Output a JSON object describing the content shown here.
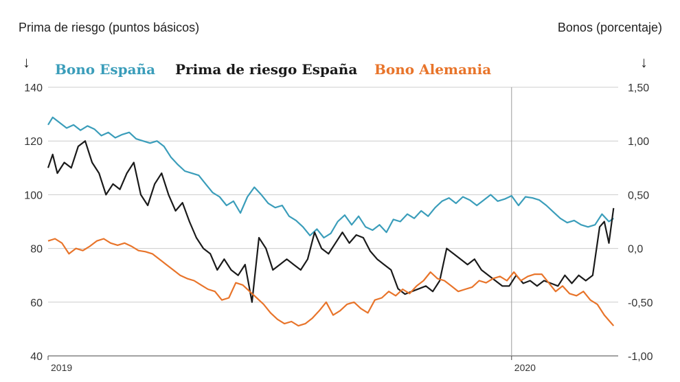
{
  "chart_data": {
    "type": "line",
    "left_axis_title": "Prima de riesgo (puntos básicos)",
    "right_axis_title": "Bonos (porcentaje)",
    "left_ylim": [
      40,
      140
    ],
    "right_ylim": [
      -1.0,
      1.5
    ],
    "left_ticks": [
      "140",
      "120",
      "100",
      "80",
      "60",
      "40"
    ],
    "right_ticks": [
      "1,50",
      "1,00",
      "0,50",
      "0,0",
      "-0,50",
      "-1,00"
    ],
    "x_ticks": [
      {
        "label": "2019",
        "x": 2019.0
      },
      {
        "label": "2020",
        "x": 2020.0
      }
    ],
    "xlim": [
      2019.0,
      2020.23
    ],
    "grid": true,
    "vertical_marker_x": 2020.0,
    "legend_placement": "top",
    "colors": {
      "bono_espana": "#3a9dba",
      "prima": "#1a1a1a",
      "bono_alemania": "#e8742a"
    },
    "series": [
      {
        "name": "Bono España",
        "axis": "right",
        "x": [
          2019.0,
          2019.01,
          2019.025,
          2019.04,
          2019.055,
          2019.07,
          2019.085,
          2019.1,
          2019.115,
          2019.13,
          2019.145,
          2019.16,
          2019.175,
          2019.19,
          2019.205,
          2019.22,
          2019.235,
          2019.25,
          2019.265,
          2019.28,
          2019.295,
          2019.31,
          2019.325,
          2019.34,
          2019.355,
          2019.37,
          2019.385,
          2019.4,
          2019.415,
          2019.43,
          2019.445,
          2019.46,
          2019.475,
          2019.49,
          2019.505,
          2019.52,
          2019.535,
          2019.55,
          2019.565,
          2019.58,
          2019.595,
          2019.61,
          2019.625,
          2019.64,
          2019.655,
          2019.67,
          2019.685,
          2019.7,
          2019.715,
          2019.73,
          2019.745,
          2019.76,
          2019.775,
          2019.79,
          2019.805,
          2019.82,
          2019.835,
          2019.85,
          2019.865,
          2019.88,
          2019.895,
          2019.91,
          2019.925,
          2019.94,
          2019.955,
          2019.97,
          2019.985,
          2020.0,
          2020.015,
          2020.03,
          2020.045,
          2020.06,
          2020.075,
          2020.09,
          2020.105,
          2020.12,
          2020.135,
          2020.15,
          2020.165,
          2020.18,
          2020.195,
          2020.21,
          2020.22
        ],
        "values": [
          1.15,
          1.22,
          1.17,
          1.12,
          1.15,
          1.1,
          1.14,
          1.11,
          1.05,
          1.08,
          1.03,
          1.06,
          1.08,
          1.02,
          1.0,
          0.98,
          1.0,
          0.95,
          0.85,
          0.78,
          0.72,
          0.7,
          0.68,
          0.6,
          0.52,
          0.48,
          0.4,
          0.44,
          0.33,
          0.48,
          0.57,
          0.5,
          0.42,
          0.38,
          0.4,
          0.3,
          0.26,
          0.2,
          0.12,
          0.18,
          0.1,
          0.14,
          0.25,
          0.31,
          0.22,
          0.3,
          0.2,
          0.17,
          0.22,
          0.15,
          0.27,
          0.25,
          0.32,
          0.28,
          0.35,
          0.3,
          0.38,
          0.44,
          0.47,
          0.42,
          0.48,
          0.45,
          0.4,
          0.45,
          0.5,
          0.44,
          0.46,
          0.49,
          0.4,
          0.48,
          0.47,
          0.45,
          0.4,
          0.34,
          0.28,
          0.24,
          0.26,
          0.22,
          0.2,
          0.22,
          0.32,
          0.25,
          0.28
        ]
      },
      {
        "name": "Prima de riesgo España",
        "axis": "left",
        "x": [
          2019.0,
          2019.01,
          2019.02,
          2019.035,
          2019.05,
          2019.065,
          2019.08,
          2019.095,
          2019.11,
          2019.125,
          2019.14,
          2019.155,
          2019.17,
          2019.185,
          2019.2,
          2019.215,
          2019.23,
          2019.245,
          2019.26,
          2019.275,
          2019.29,
          2019.305,
          2019.32,
          2019.335,
          2019.35,
          2019.365,
          2019.38,
          2019.395,
          2019.41,
          2019.425,
          2019.44,
          2019.455,
          2019.47,
          2019.485,
          2019.5,
          2019.515,
          2019.53,
          2019.545,
          2019.56,
          2019.575,
          2019.59,
          2019.605,
          2019.62,
          2019.635,
          2019.65,
          2019.665,
          2019.68,
          2019.695,
          2019.71,
          2019.725,
          2019.74,
          2019.755,
          2019.77,
          2019.785,
          2019.8,
          2019.815,
          2019.83,
          2019.845,
          2019.86,
          2019.875,
          2019.89,
          2019.905,
          2019.92,
          2019.935,
          2019.95,
          2019.965,
          2019.98,
          2019.995,
          2020.01,
          2020.025,
          2020.04,
          2020.055,
          2020.07,
          2020.085,
          2020.1,
          2020.115,
          2020.13,
          2020.145,
          2020.16,
          2020.175,
          2020.19,
          2020.2,
          2020.21,
          2020.22
        ],
        "values": [
          110,
          115,
          108,
          112,
          110,
          118,
          120,
          112,
          108,
          100,
          104,
          102,
          108,
          112,
          100,
          96,
          104,
          108,
          100,
          94,
          97,
          90,
          84,
          80,
          78,
          72,
          76,
          72,
          70,
          74,
          60,
          84,
          80,
          72,
          74,
          76,
          74,
          72,
          76,
          86,
          80,
          78,
          82,
          86,
          82,
          85,
          84,
          79,
          76,
          74,
          72,
          65,
          63,
          64,
          65,
          66,
          64,
          68,
          80,
          78,
          76,
          74,
          76,
          72,
          70,
          68,
          66,
          66,
          70,
          67,
          68,
          66,
          68,
          67,
          66,
          70,
          67,
          70,
          68,
          70,
          88,
          90,
          82,
          95
        ]
      },
      {
        "name": "Bono Alemania",
        "axis": "right",
        "x": [
          2019.0,
          2019.015,
          2019.03,
          2019.045,
          2019.06,
          2019.075,
          2019.09,
          2019.105,
          2019.12,
          2019.135,
          2019.15,
          2019.165,
          2019.18,
          2019.195,
          2019.21,
          2019.225,
          2019.24,
          2019.255,
          2019.27,
          2019.285,
          2019.3,
          2019.315,
          2019.33,
          2019.345,
          2019.36,
          2019.375,
          2019.39,
          2019.405,
          2019.42,
          2019.435,
          2019.45,
          2019.465,
          2019.48,
          2019.495,
          2019.51,
          2019.525,
          2019.54,
          2019.555,
          2019.57,
          2019.585,
          2019.6,
          2019.615,
          2019.63,
          2019.645,
          2019.66,
          2019.675,
          2019.69,
          2019.705,
          2019.72,
          2019.735,
          2019.75,
          2019.765,
          2019.78,
          2019.795,
          2019.81,
          2019.825,
          2019.84,
          2019.855,
          2019.87,
          2019.885,
          2019.9,
          2019.915,
          2019.93,
          2019.945,
          2019.96,
          2019.975,
          2019.99,
          2020.005,
          2020.02,
          2020.035,
          2020.05,
          2020.065,
          2020.08,
          2020.095,
          2020.11,
          2020.125,
          2020.14,
          2020.155,
          2020.17,
          2020.185,
          2020.2,
          2020.22
        ],
        "values": [
          0.07,
          0.09,
          0.05,
          -0.05,
          0.0,
          -0.02,
          0.02,
          0.07,
          0.09,
          0.05,
          0.03,
          0.05,
          0.02,
          -0.02,
          -0.03,
          -0.05,
          -0.1,
          -0.15,
          -0.2,
          -0.25,
          -0.28,
          -0.3,
          -0.34,
          -0.38,
          -0.4,
          -0.48,
          -0.46,
          -0.32,
          -0.34,
          -0.4,
          -0.46,
          -0.52,
          -0.6,
          -0.66,
          -0.7,
          -0.68,
          -0.72,
          -0.7,
          -0.65,
          -0.58,
          -0.5,
          -0.62,
          -0.58,
          -0.52,
          -0.5,
          -0.56,
          -0.6,
          -0.48,
          -0.46,
          -0.4,
          -0.44,
          -0.38,
          -0.42,
          -0.35,
          -0.3,
          -0.22,
          -0.28,
          -0.3,
          -0.35,
          -0.4,
          -0.38,
          -0.36,
          -0.3,
          -0.32,
          -0.28,
          -0.26,
          -0.3,
          -0.22,
          -0.3,
          -0.26,
          -0.24,
          -0.24,
          -0.32,
          -0.4,
          -0.35,
          -0.42,
          -0.44,
          -0.4,
          -0.48,
          -0.52,
          -0.62,
          -0.72
        ]
      }
    ]
  }
}
